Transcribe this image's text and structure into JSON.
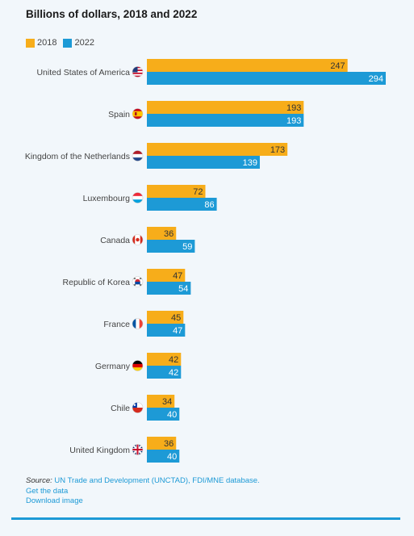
{
  "colors": {
    "s2018": "#f7ad1a",
    "s2022": "#1d9ad6",
    "background": "#f2f7fb"
  },
  "title": "Billions of dollars, 2018 and 2022",
  "legend": {
    "items": [
      "2018",
      "2022"
    ]
  },
  "source": {
    "label": "Source:",
    "text": "UN Trade and Development (UNCTAD), FDI/MNE database.",
    "get_data": "Get the data",
    "download_image": "Download image"
  },
  "chart_data": {
    "type": "bar",
    "orientation": "horizontal",
    "categories": [
      "United States of America",
      "Spain",
      "Kingdom of the Netherlands",
      "Luxembourg",
      "Canada",
      "Republic of Korea",
      "France",
      "Germany",
      "Chile",
      "United Kingdom"
    ],
    "flag_icons": [
      "usa-flag-icon",
      "spain-flag-icon",
      "netherlands-flag-icon",
      "luxembourg-flag-icon",
      "canada-flag-icon",
      "korea-flag-icon",
      "france-flag-icon",
      "germany-flag-icon",
      "chile-flag-icon",
      "uk-flag-icon"
    ],
    "series": [
      {
        "name": "2018",
        "values": [
          247,
          193,
          173,
          72,
          36,
          47,
          45,
          42,
          34,
          36
        ]
      },
      {
        "name": "2022",
        "values": [
          294,
          193,
          139,
          86,
          59,
          54,
          47,
          42,
          40,
          40
        ]
      }
    ],
    "title": "Billions of dollars, 2018 and 2022",
    "xlabel": "",
    "ylabel": "",
    "xlim": [
      0,
      294
    ],
    "grid": false,
    "legend_position": "top-left",
    "data_labels": true
  }
}
